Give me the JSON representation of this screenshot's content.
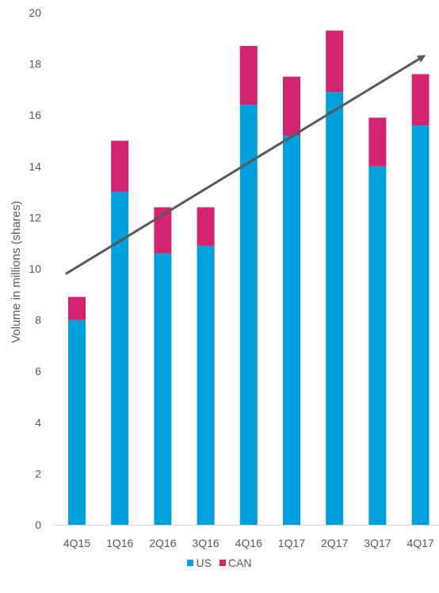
{
  "chart_data": {
    "type": "bar",
    "stacked": true,
    "categories": [
      "4Q15",
      "1Q16",
      "2Q16",
      "3Q16",
      "4Q16",
      "1Q17",
      "2Q17",
      "3Q17",
      "4Q17"
    ],
    "series": [
      {
        "name": "US",
        "color": "#00A0DC",
        "values": [
          8.0,
          13.0,
          10.6,
          10.9,
          16.4,
          15.2,
          16.9,
          14.0,
          15.6
        ]
      },
      {
        "name": "CAN",
        "color": "#D4246F",
        "values": [
          0.9,
          2.0,
          1.8,
          1.5,
          2.3,
          2.3,
          2.4,
          1.9,
          2.0
        ]
      }
    ],
    "ylabel": "Volume in millions (shares)",
    "xlabel": "",
    "ylim": [
      0,
      20
    ],
    "yticks": [
      0,
      2,
      4,
      6,
      8,
      10,
      12,
      14,
      16,
      18,
      20
    ],
    "grid": false,
    "legend_position": "bottom-center",
    "annotations": [
      {
        "type": "trend-arrow",
        "color": "#595959",
        "from": {
          "x": "4Q15",
          "y": 9.8
        },
        "to": {
          "x": "4Q17",
          "y": 18.3
        }
      }
    ]
  }
}
